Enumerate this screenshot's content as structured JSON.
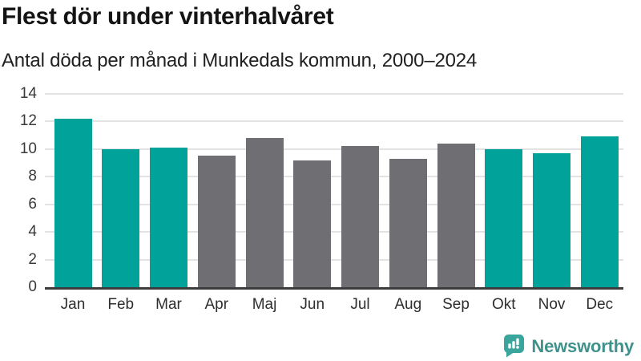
{
  "header": {
    "title": "Flest dör under vinterhalvåret",
    "subtitle": "Antal döda per månad i Munkedals kommun, 2000–2024"
  },
  "chart_data": {
    "type": "bar",
    "title": "Flest dör under vinterhalvåret",
    "subtitle": "Antal döda per månad i Munkedals kommun, 2000–2024",
    "categories": [
      "Jan",
      "Feb",
      "Mar",
      "Apr",
      "Maj",
      "Jun",
      "Jul",
      "Aug",
      "Sep",
      "Okt",
      "Nov",
      "Dec"
    ],
    "values": [
      12.2,
      10.0,
      10.1,
      9.5,
      10.8,
      9.2,
      10.2,
      9.3,
      10.4,
      10.0,
      9.7,
      10.9
    ],
    "bar_colors": [
      "teal",
      "teal",
      "teal",
      "gray",
      "gray",
      "gray",
      "gray",
      "gray",
      "gray",
      "teal",
      "teal",
      "teal"
    ],
    "palette": {
      "teal": "#00a29a",
      "gray": "#6e6e73"
    },
    "xlabel": "",
    "ylabel": "",
    "ylim": [
      0,
      14
    ],
    "ytick_step": 2,
    "grid": true,
    "legend": false,
    "gridline_color": "#e3e3e3",
    "axis_line_color": "#3c3c3c"
  },
  "footer": {
    "logo_text": "Newsworthy",
    "logo_text_color": "#3f918b",
    "logo_icon": "newsworthy-bar-chart-bubble-icon",
    "logo_icon_color": "#3aa59d"
  }
}
